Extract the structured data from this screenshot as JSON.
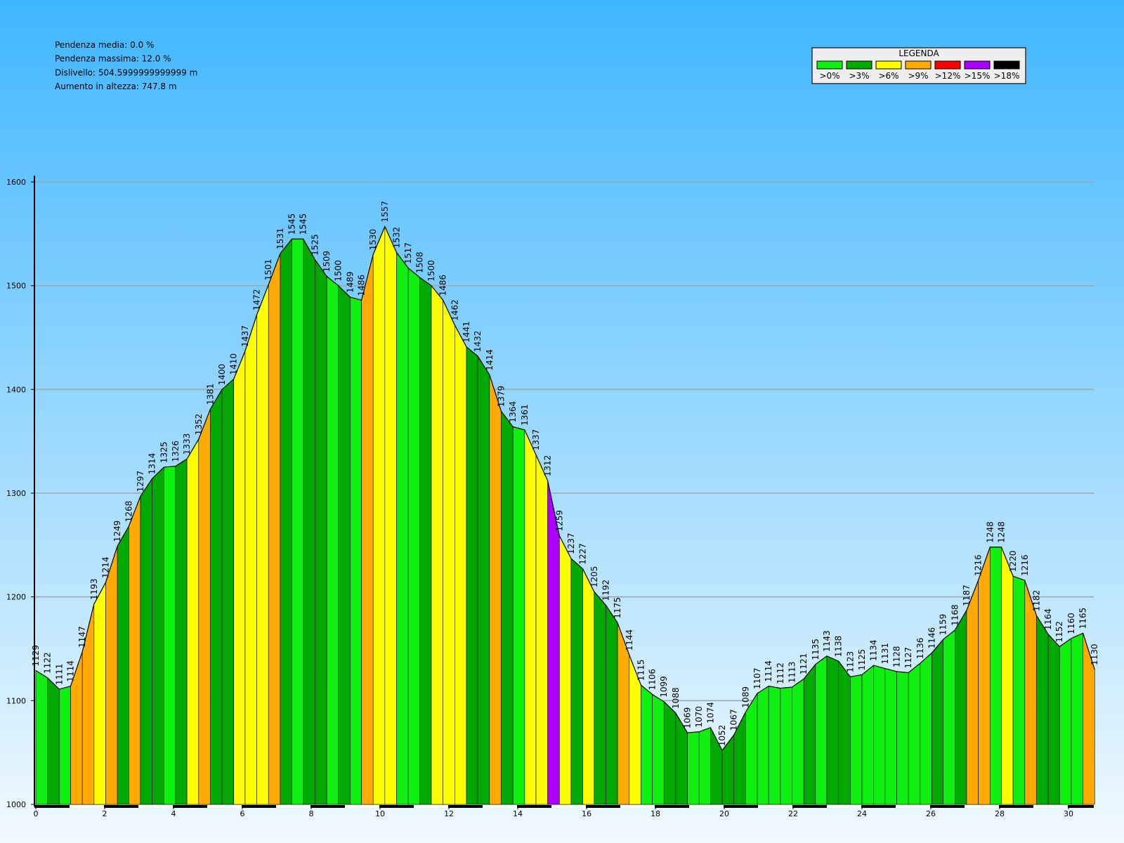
{
  "chart_data": {
    "type": "area",
    "stats": [
      "Pendenza media: 0.0 %",
      "Pendenza massima: 12.0 %",
      "Dislivello: 504.5999999999999 m",
      "Aumento in altezza: 747.8 m"
    ],
    "legend": {
      "title": "LEGENDA",
      "items": [
        {
          "label": ">0%",
          "color": "#10f010"
        },
        {
          "label": ">3%",
          "color": "#00a800"
        },
        {
          "label": ">6%",
          "color": "#ffff00"
        },
        {
          "label": ">9%",
          "color": "#ffaa00"
        },
        {
          "label": ">12%",
          "color": "#ff0000"
        },
        {
          "label": ">15%",
          "color": "#aa00ff"
        },
        {
          "label": ">18%",
          "color": "#000000"
        }
      ]
    },
    "x": [
      0,
      0.34,
      0.68,
      1.01,
      1.35,
      1.69,
      2.03,
      2.37,
      2.7,
      3.04,
      3.38,
      3.72,
      4.06,
      4.39,
      4.73,
      5.07,
      5.41,
      5.75,
      6.08,
      6.42,
      6.76,
      7.1,
      7.44,
      7.77,
      8.11,
      8.45,
      8.79,
      9.13,
      9.46,
      9.8,
      10.14,
      10.48,
      10.82,
      11.15,
      11.49,
      11.83,
      12.17,
      12.51,
      12.84,
      13.18,
      13.52,
      13.86,
      14.2,
      14.53,
      14.87,
      15.21,
      15.55,
      15.89,
      16.22,
      16.56,
      16.9,
      17.24,
      17.58,
      17.91,
      18.25,
      18.59,
      18.93,
      19.27,
      19.6,
      19.94,
      20.28,
      20.62,
      20.96,
      21.29,
      21.63,
      21.97,
      22.31,
      22.65,
      22.98,
      23.32,
      23.66,
      24.0,
      24.34,
      24.67,
      25.01,
      25.35,
      25.69,
      26.03,
      26.36,
      26.7,
      27.04,
      27.38,
      27.72,
      28.05,
      28.39,
      28.73,
      29.07,
      29.41,
      29.74,
      30.08,
      30.42,
      30.76
    ],
    "values": [
      1129,
      1122,
      1111,
      1114,
      1147,
      1193,
      1214,
      1249,
      1268,
      1297,
      1314,
      1325,
      1326,
      1333,
      1352,
      1381,
      1400,
      1410,
      1437,
      1472,
      1501,
      1531,
      1545,
      1545,
      1525,
      1509,
      1500,
      1489,
      1486,
      1530,
      1557,
      1532,
      1517,
      1508,
      1500,
      1486,
      1462,
      1441,
      1432,
      1414,
      1379,
      1364,
      1361,
      1337,
      1312,
      1259,
      1237,
      1227,
      1205,
      1192,
      1175,
      1144,
      1115,
      1106,
      1099,
      1088,
      1069,
      1070,
      1074,
      1052,
      1067,
      1089,
      1107,
      1114,
      1112,
      1113,
      1121,
      1135,
      1143,
      1138,
      1123,
      1125,
      1134,
      1131,
      1128,
      1127,
      1136,
      1146,
      1159,
      1168,
      1187,
      1216,
      1248,
      1248,
      1220,
      1216,
      1182,
      1164,
      1152,
      1160,
      1165,
      1130
    ],
    "segment_colors": [
      "#10f010",
      "#00a800",
      "#10f010",
      "#ffaa00",
      "#ffaa00",
      "#ffff00",
      "#ffaa00",
      "#00a800",
      "#ffaa00",
      "#00a800",
      "#00a800",
      "#10f010",
      "#00a800",
      "#ffff00",
      "#ffaa00",
      "#00a800",
      "#00a800",
      "#ffff00",
      "#ffff00",
      "#ffff00",
      "#ffaa00",
      "#00a800",
      "#10f010",
      "#00a800",
      "#00a800",
      "#10f010",
      "#00a800",
      "#10f010",
      "#ffaa00",
      "#ffff00",
      "#ffff00",
      "#10f010",
      "#10f010",
      "#00a800",
      "#ffff00",
      "#ffff00",
      "#ffff00",
      "#00a800",
      "#00a800",
      "#ffaa00",
      "#00a800",
      "#10f010",
      "#ffff00",
      "#ffff00",
      "#aa00ff",
      "#ffff00",
      "#00a800",
      "#ffff00",
      "#00a800",
      "#00a800",
      "#ffaa00",
      "#ffff00",
      "#10f010",
      "#10f010",
      "#00a800",
      "#00a800",
      "#10f010",
      "#10f010",
      "#00a800",
      "#00a800",
      "#00a800",
      "#10f010",
      "#10f010",
      "#10f010",
      "#10f010",
      "#10f010",
      "#00a800",
      "#10f010",
      "#00a800",
      "#00a800",
      "#10f010",
      "#10f010",
      "#10f010",
      "#10f010",
      "#10f010",
      "#10f010",
      "#10f010",
      "#00a800",
      "#10f010",
      "#00a800",
      "#ffaa00",
      "#ffaa00",
      "#10f010",
      "#ffff00",
      "#10f010",
      "#ffaa00",
      "#00a800",
      "#00a800",
      "#10f010",
      "#10f010",
      "#ffaa00"
    ],
    "xlim": [
      0,
      31
    ],
    "ylim": [
      1000,
      1600
    ],
    "xticks": [
      0,
      2,
      4,
      6,
      8,
      10,
      12,
      14,
      16,
      18,
      20,
      22,
      24,
      26,
      28,
      30
    ],
    "yticks": [
      1000,
      1100,
      1200,
      1300,
      1400,
      1500,
      1600
    ],
    "grid": true
  }
}
